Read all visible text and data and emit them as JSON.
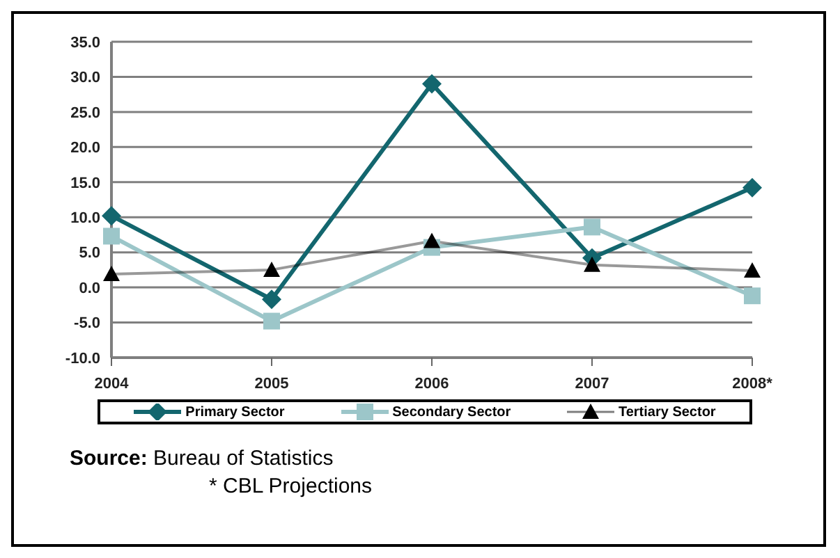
{
  "chart_data": {
    "type": "line",
    "categories": [
      "2004",
      "2005",
      "2006",
      "2007",
      "2008*"
    ],
    "series": [
      {
        "name": "Primary Sector",
        "color": "#13666e",
        "marker": "diamond",
        "values": [
          10.2,
          -1.7,
          29.0,
          4.2,
          14.2
        ]
      },
      {
        "name": "Secondary Sector",
        "color": "#9cc6c9",
        "marker": "square",
        "values": [
          7.3,
          -4.8,
          5.7,
          8.6,
          -1.2
        ]
      },
      {
        "name": "Tertiary Sector",
        "color": "#000000",
        "marker": "triangle",
        "values": [
          1.9,
          2.5,
          6.6,
          3.2,
          2.4
        ]
      }
    ],
    "ylim": [
      -10,
      35
    ],
    "yticks": [
      {
        "value": -10,
        "label": "-10.0"
      },
      {
        "value": -5,
        "label": "-5.0"
      },
      {
        "value": 0,
        "label": "0.0"
      },
      {
        "value": 5,
        "label": "5.0"
      },
      {
        "value": 10,
        "label": "10.0"
      },
      {
        "value": 15,
        "label": "15.0"
      },
      {
        "value": 20,
        "label": "20.0"
      },
      {
        "value": 25,
        "label": "25.0"
      },
      {
        "value": 30,
        "label": "30.0"
      },
      {
        "value": 35,
        "label": "35.0"
      }
    ],
    "grid": "y",
    "legend": "bottom",
    "annotations": [
      "Source: Bureau of Statistics",
      "* CBL Projections"
    ]
  }
}
